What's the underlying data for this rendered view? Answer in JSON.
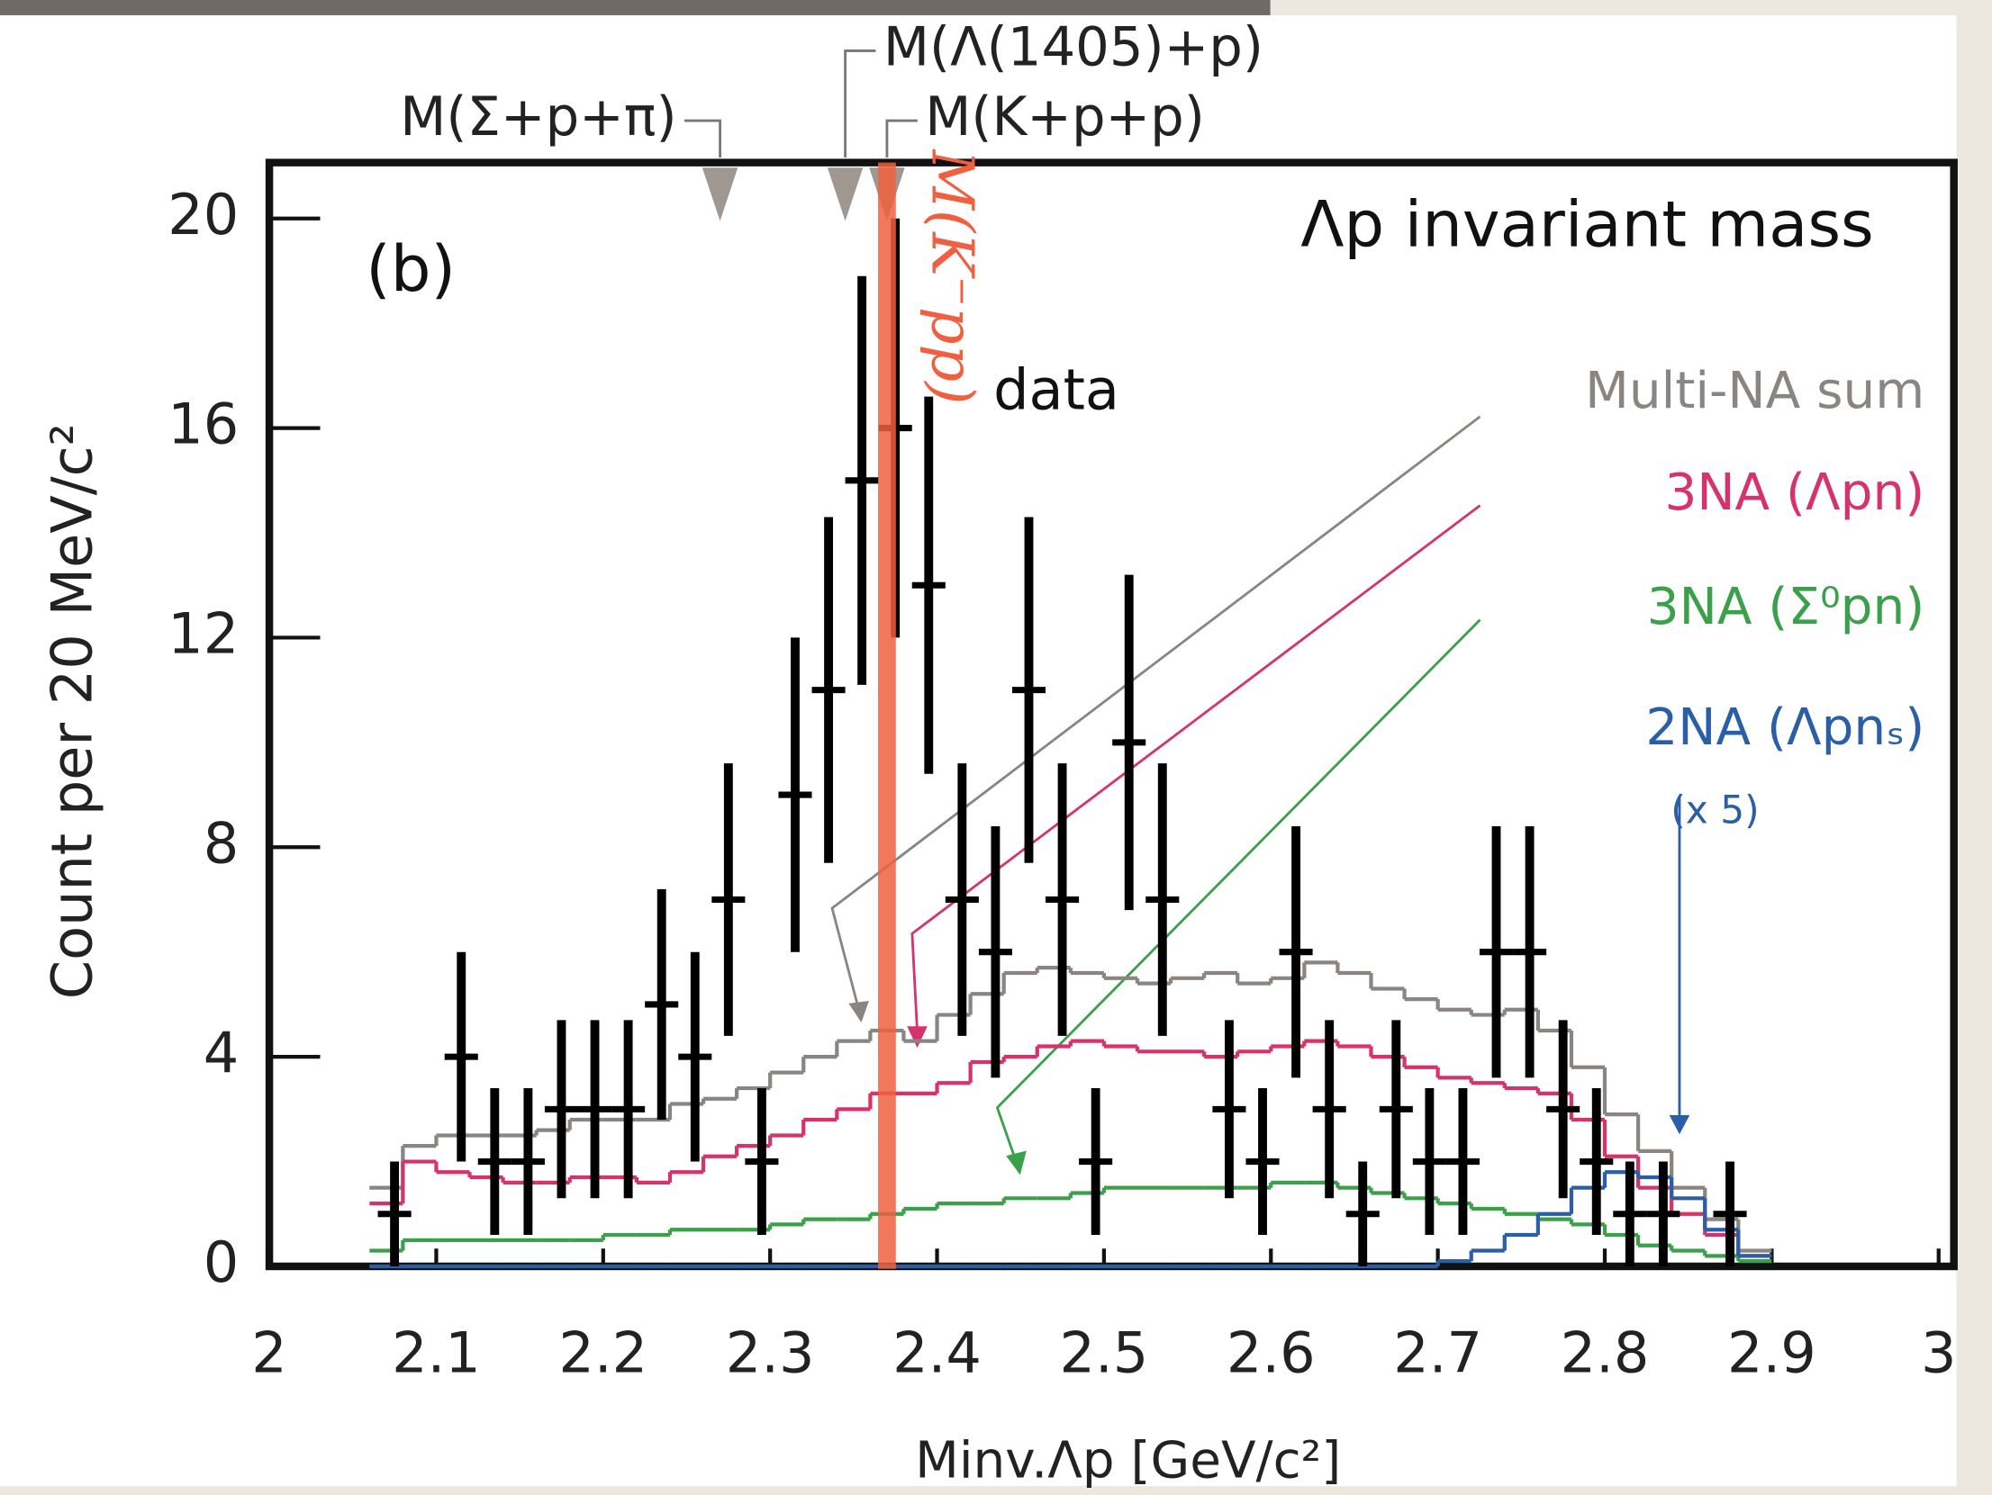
{
  "chart_data": {
    "type": "histogram",
    "title": "Λp invariant mass",
    "panel_label": "(b)",
    "xlabel": "Minv.Λp  [GeV/c²]",
    "ylabel": "Count per 20 MeV/c²",
    "xlim": [
      2,
      3
    ],
    "ylim": [
      0,
      21
    ],
    "xticks": [
      2,
      2.1,
      2.2,
      2.3,
      2.4,
      2.5,
      2.6,
      2.7,
      2.8,
      2.9,
      3
    ],
    "yticks": [
      0,
      4,
      8,
      12,
      16,
      20
    ],
    "data": {
      "name": "data",
      "color": "#000000",
      "x": [
        2.075,
        2.115,
        2.135,
        2.155,
        2.175,
        2.195,
        2.215,
        2.235,
        2.255,
        2.275,
        2.295,
        2.315,
        2.335,
        2.355,
        2.375,
        2.395,
        2.415,
        2.435,
        2.455,
        2.475,
        2.495,
        2.515,
        2.535,
        2.575,
        2.595,
        2.615,
        2.635,
        2.655,
        2.675,
        2.695,
        2.715,
        2.735,
        2.755,
        2.775,
        2.795,
        2.815,
        2.835,
        2.875
      ],
      "values": [
        1,
        4,
        2,
        2,
        3,
        3,
        3,
        5,
        4,
        7,
        2,
        9,
        11,
        15,
        16,
        13,
        7,
        6,
        11,
        7,
        2,
        10,
        7,
        3,
        2,
        6,
        3,
        1,
        3,
        2,
        2,
        6,
        6,
        3,
        2,
        1,
        1,
        1
      ],
      "errors": [
        1,
        2,
        1.4,
        1.4,
        1.7,
        1.7,
        1.7,
        2.2,
        2,
        2.6,
        1.4,
        3,
        3.3,
        3.9,
        4,
        3.6,
        2.6,
        2.4,
        3.3,
        2.6,
        1.4,
        3.2,
        2.6,
        1.7,
        1.4,
        2.4,
        1.7,
        1,
        1.7,
        1.4,
        1.4,
        2.4,
        2.4,
        1.7,
        1.4,
        1,
        1,
        1
      ]
    },
    "bins": [
      2.06,
      2.08,
      2.1,
      2.12,
      2.14,
      2.16,
      2.18,
      2.2,
      2.22,
      2.24,
      2.26,
      2.28,
      2.3,
      2.32,
      2.34,
      2.36,
      2.38,
      2.4,
      2.42,
      2.44,
      2.46,
      2.48,
      2.5,
      2.52,
      2.54,
      2.56,
      2.58,
      2.6,
      2.62,
      2.64,
      2.66,
      2.68,
      2.7,
      2.72,
      2.74,
      2.76,
      2.78,
      2.8,
      2.82,
      2.84,
      2.86,
      2.88,
      2.9
    ],
    "series": [
      {
        "name": "Multi-NA sum",
        "color": "#8a8580",
        "values": [
          1.5,
          2.3,
          2.5,
          2.5,
          2.5,
          2.6,
          2.8,
          2.8,
          2.8,
          3.1,
          3.2,
          3.4,
          3.7,
          4.0,
          4.3,
          4.5,
          4.3,
          4.8,
          5.2,
          5.6,
          5.7,
          5.6,
          5.5,
          5.4,
          5.5,
          5.6,
          5.4,
          5.5,
          5.8,
          5.6,
          5.3,
          5.1,
          4.9,
          4.8,
          4.9,
          4.5,
          3.8,
          2.9,
          2.2,
          1.5,
          0.9,
          0.3
        ]
      },
      {
        "name": "3NA (Λpn)",
        "color": "#d6336c",
        "values": [
          1.2,
          2.0,
          1.8,
          1.7,
          1.6,
          1.6,
          1.7,
          1.7,
          1.6,
          1.8,
          2.1,
          2.3,
          2.5,
          2.8,
          3.0,
          3.3,
          3.3,
          3.5,
          3.9,
          4.0,
          4.2,
          4.3,
          4.2,
          4.1,
          4.1,
          4.0,
          4.1,
          4.2,
          4.3,
          4.2,
          4.0,
          3.8,
          3.6,
          3.5,
          3.4,
          3.3,
          2.8,
          2.1,
          1.5,
          1.0,
          0.6,
          0.2
        ]
      },
      {
        "name": "3NA (Σ⁰pn)",
        "color": "#3aa04a",
        "values": [
          0.3,
          0.5,
          0.5,
          0.5,
          0.5,
          0.5,
          0.5,
          0.6,
          0.6,
          0.7,
          0.7,
          0.7,
          0.8,
          0.9,
          0.9,
          1.0,
          1.1,
          1.2,
          1.2,
          1.3,
          1.3,
          1.4,
          1.5,
          1.5,
          1.5,
          1.5,
          1.5,
          1.6,
          1.6,
          1.5,
          1.4,
          1.3,
          1.2,
          1.1,
          1.0,
          0.9,
          0.8,
          0.6,
          0.4,
          0.3,
          0.2,
          0.1
        ]
      },
      {
        "name": "2NA (Λpnₛ)",
        "color": "#2a5fa8",
        "values": [
          0,
          0,
          0,
          0,
          0,
          0,
          0,
          0,
          0,
          0,
          0,
          0,
          0,
          0,
          0,
          0,
          0,
          0,
          0,
          0,
          0,
          0,
          0,
          0,
          0,
          0,
          0,
          0,
          0,
          0,
          0,
          0,
          0.1,
          0.3,
          0.6,
          1.0,
          1.5,
          1.8,
          1.7,
          1.3,
          0.7,
          0.2
        ]
      }
    ],
    "scale_note": "(x 5)",
    "annotations": [
      {
        "text": "M(Σ+p+π)",
        "x": 2.27
      },
      {
        "text": "M(Λ(1405)+p)",
        "x": 2.345
      },
      {
        "text": "M(K+p+p)",
        "x": 2.37
      }
    ],
    "marker_line": {
      "label": "M(K⁻pp)",
      "x": 2.37,
      "color": "#f06040"
    }
  }
}
